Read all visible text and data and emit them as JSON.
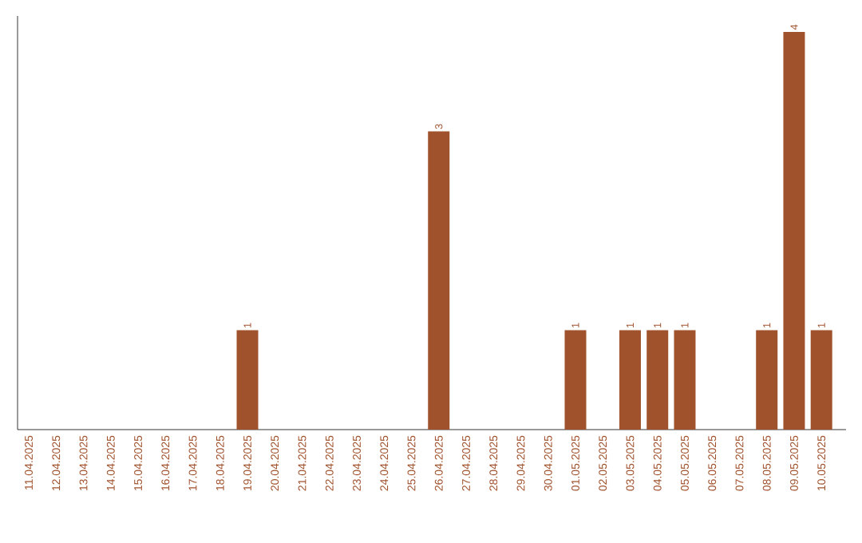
{
  "chart_data": {
    "type": "bar",
    "categories": [
      "11.04.2025",
      "12.04.2025",
      "13.04.2025",
      "14.04.2025",
      "15.04.2025",
      "16.04.2025",
      "17.04.2025",
      "18.04.2025",
      "19.04.2025",
      "20.04.2025",
      "21.04.2025",
      "22.04.2025",
      "23.04.2025",
      "24.04.2025",
      "25.04.2025",
      "26.04.2025",
      "27.04.2025",
      "28.04.2025",
      "29.04.2025",
      "30.04.2025",
      "01.05.2025",
      "02.05.2025",
      "03.05.2025",
      "04.05.2025",
      "05.05.2025",
      "06.05.2025",
      "07.05.2025",
      "08.05.2025",
      "09.05.2025",
      "10.05.2025"
    ],
    "values": [
      0,
      0,
      0,
      0,
      0,
      0,
      0,
      0,
      1,
      0,
      0,
      0,
      0,
      0,
      0,
      3,
      0,
      0,
      0,
      0,
      1,
      0,
      1,
      1,
      1,
      0,
      0,
      1,
      4,
      1
    ],
    "value_labels": [
      null,
      null,
      null,
      null,
      null,
      null,
      null,
      null,
      "1",
      null,
      null,
      null,
      null,
      null,
      null,
      "3",
      null,
      null,
      null,
      null,
      "1",
      null,
      "1",
      "1",
      "1",
      null,
      null,
      "1",
      "4",
      "1"
    ],
    "color": "#a0522d"
  }
}
